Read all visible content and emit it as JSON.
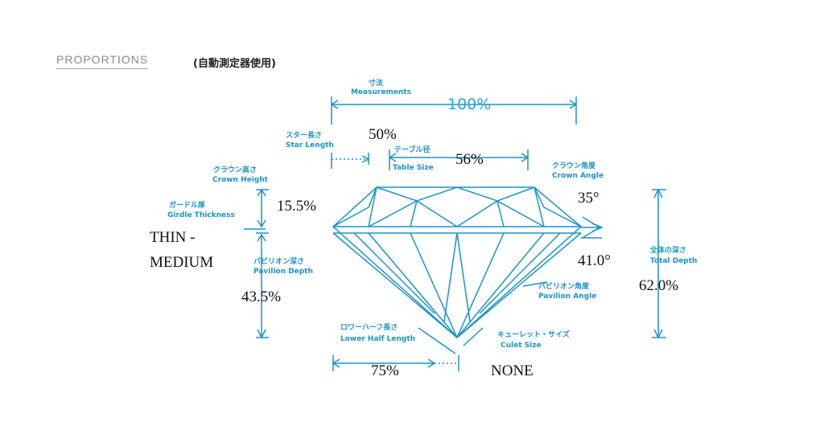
{
  "header": {
    "title": "PROPORTIONS",
    "subtitle": "(自動測定器使用)"
  },
  "labels": {
    "measurements": {
      "jp": "寸法",
      "en": "Measurements",
      "value": "100%"
    },
    "star_length": {
      "jp": "スター長さ",
      "en": "Star Length",
      "value": "50%"
    },
    "table_size": {
      "jp": "テーブル径",
      "en": "Table Size",
      "value": "56%"
    },
    "crown_height": {
      "jp": "クラウン高さ",
      "en": "Crown Height",
      "value": "15.5%"
    },
    "girdle_thickness": {
      "jp": "ガードル厚",
      "en": "Girdle Thickness",
      "value_line1": "THIN -",
      "value_line2": "MEDIUM"
    },
    "pavilion_depth": {
      "jp": "パビリオン深さ",
      "en": "Pavilion Depth",
      "value": "43.5%"
    },
    "crown_angle": {
      "jp": "クラウン角度",
      "en": "Crown Angle",
      "value": "35°"
    },
    "pavilion_angle": {
      "jp": "パビリオン角度",
      "en": "Pavilion Angle",
      "value": "41.0°"
    },
    "total_depth": {
      "jp": "全体の深さ",
      "en": "Total Depth",
      "value": "62.0%"
    },
    "lower_half_length": {
      "jp": "ロワーハーフ長さ",
      "en": "Lower Half Length",
      "value": "75%"
    },
    "culet_size": {
      "jp": "キューレット・サイズ",
      "en": "Culet Size",
      "value": "NONE"
    }
  },
  "colors": {
    "diagram_line": "#1a93cc",
    "label_text": "#1a93cc",
    "value_text": "#111111"
  }
}
